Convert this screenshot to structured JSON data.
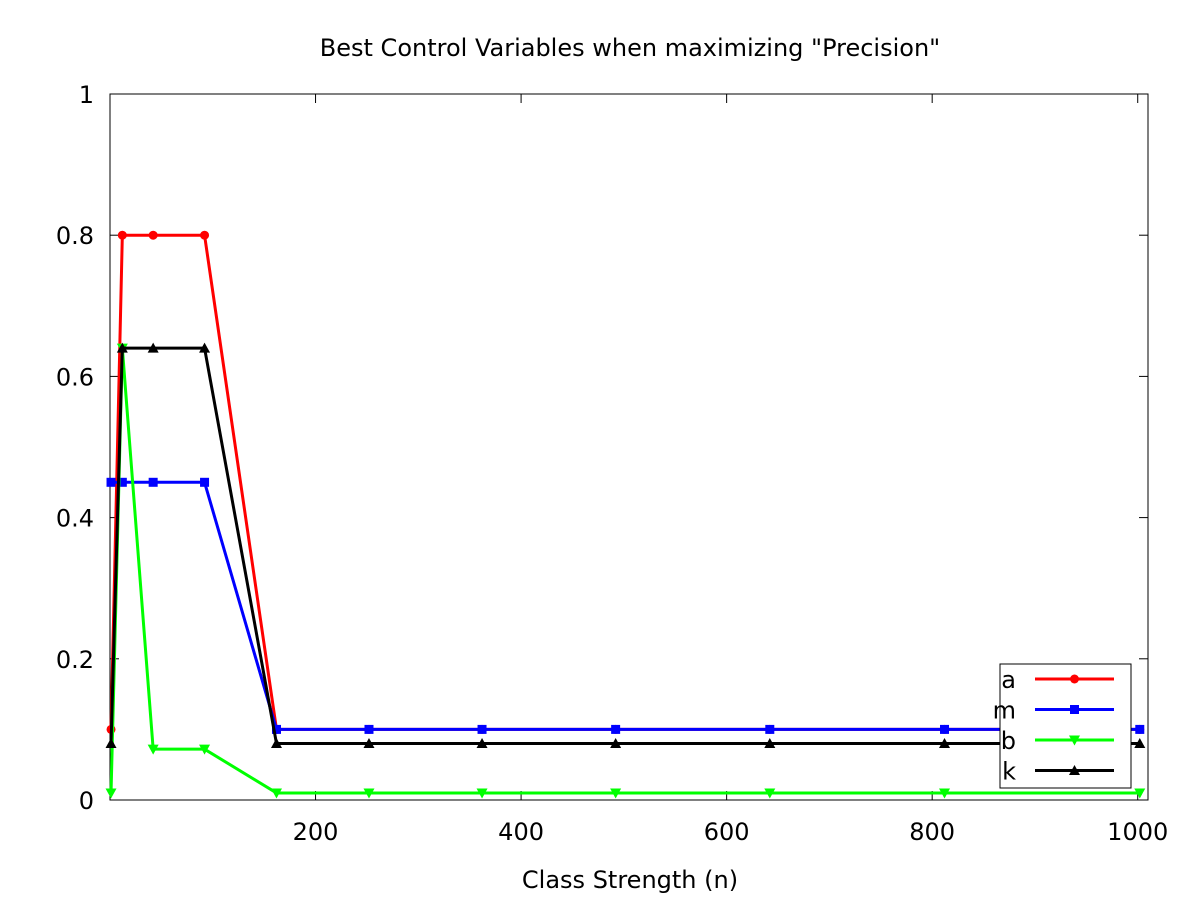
{
  "chart_data": {
    "type": "line",
    "title": "Best Control Variables when maximizing \"Precision\"",
    "xlabel": "Class Strength (n)",
    "ylabel": "",
    "xlim": [
      0,
      1010
    ],
    "ylim": [
      0,
      1
    ],
    "xticks": [
      200,
      400,
      600,
      800,
      1000
    ],
    "xtick_labels": [
      "200",
      "400",
      "600",
      "800",
      "1000"
    ],
    "yticks": [
      0,
      0.2,
      0.4,
      0.6,
      0.8,
      1
    ],
    "ytick_labels": [
      "0",
      "0.2",
      "0.4",
      "0.6",
      "0.8",
      "1"
    ],
    "grid": false,
    "legend_position": "bottom-right",
    "x": [
      1,
      12,
      42,
      92,
      162,
      252,
      362,
      492,
      642,
      812,
      1002
    ],
    "series": [
      {
        "name": "a",
        "color": "#ff0000",
        "marker": "circle",
        "values": [
          0.1,
          0.8,
          0.8,
          0.8,
          0.1,
          0.1,
          0.1,
          0.1,
          0.1,
          0.1,
          0.1
        ]
      },
      {
        "name": "m",
        "color": "#0000ff",
        "marker": "square",
        "values": [
          0.45,
          0.45,
          0.45,
          0.45,
          0.1,
          0.1,
          0.1,
          0.1,
          0.1,
          0.1,
          0.1
        ]
      },
      {
        "name": "b",
        "color": "#00ff00",
        "marker": "triangle-down",
        "values": [
          0.01,
          0.64,
          0.072,
          0.072,
          0.01,
          0.01,
          0.01,
          0.01,
          0.01,
          0.01,
          0.01
        ]
      },
      {
        "name": "k",
        "color": "#000000",
        "marker": "triangle-up",
        "values": [
          0.08,
          0.64,
          0.64,
          0.64,
          0.08,
          0.08,
          0.08,
          0.08,
          0.08,
          0.08,
          0.08
        ]
      }
    ]
  }
}
